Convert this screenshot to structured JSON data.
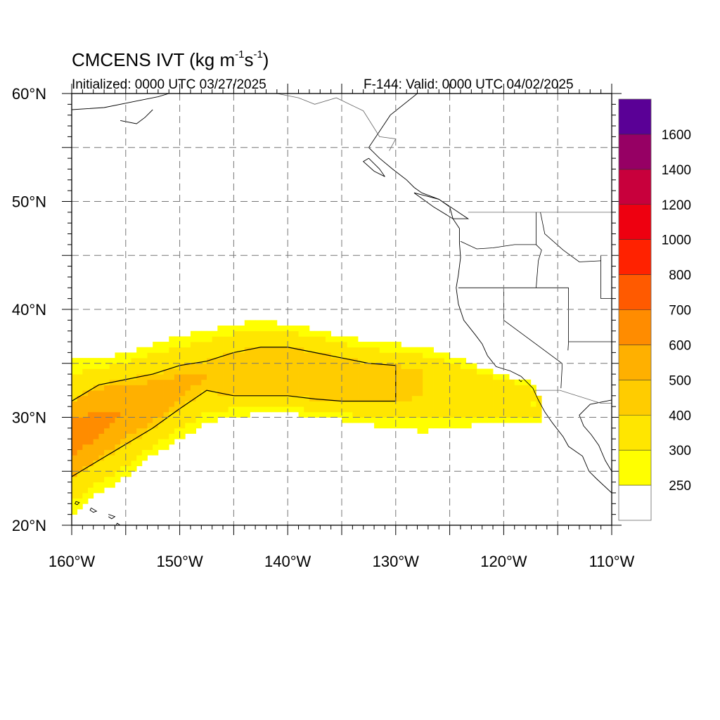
{
  "title": {
    "main": "CMCENS IVT (kg m",
    "exp1": "-1",
    "mid": "s",
    "exp2": "-1",
    "end": ")"
  },
  "init_label": "Initialized: 0000 UTC 03/27/2025",
  "valid_label": "F-144: Valid: 0000 UTC 04/02/2025",
  "map": {
    "lon_range": [
      -160,
      -110
    ],
    "lat_range": [
      20,
      60
    ],
    "grid": true,
    "grid_style": "dashed",
    "lon_ticks": [
      {
        "value": -160,
        "label": "160°W"
      },
      {
        "value": -150,
        "label": "150°W"
      },
      {
        "value": -140,
        "label": "140°W"
      },
      {
        "value": -130,
        "label": "130°W"
      },
      {
        "value": -120,
        "label": "120°W"
      },
      {
        "value": -110,
        "label": "110°W"
      }
    ],
    "lat_ticks": [
      {
        "value": 20,
        "label": "20°N"
      },
      {
        "value": 30,
        "label": "30°N"
      },
      {
        "value": 40,
        "label": "40°N"
      },
      {
        "value": 50,
        "label": "50°N"
      },
      {
        "value": 60,
        "label": "60°N"
      }
    ]
  },
  "colorbar": {
    "levels": [
      {
        "lo": 0,
        "color": "#ffffff"
      },
      {
        "lo": 250,
        "color": "#ffff00"
      },
      {
        "lo": 300,
        "color": "#ffe600"
      },
      {
        "lo": 400,
        "color": "#ffcc00"
      },
      {
        "lo": 500,
        "color": "#ffb000"
      },
      {
        "lo": 600,
        "color": "#ff8c00"
      },
      {
        "lo": 700,
        "color": "#ff5a00"
      },
      {
        "lo": 800,
        "color": "#ff2200"
      },
      {
        "lo": 1000,
        "color": "#ee0010"
      },
      {
        "lo": 1200,
        "color": "#c8003c"
      },
      {
        "lo": 1400,
        "color": "#960064"
      },
      {
        "lo": 1600,
        "color": "#5a0096"
      }
    ],
    "labels": [
      "250",
      "300",
      "400",
      "500",
      "600",
      "700",
      "800",
      "1000",
      "1200",
      "1400",
      "1600"
    ]
  },
  "chart_data": {
    "type": "heatmap",
    "variable": "IVT",
    "units": "kg m-1 s-1",
    "region": {
      "lon": [
        -160,
        -110
      ],
      "lat": [
        20,
        60
      ]
    },
    "ivt_plume": [
      {
        "lon": -160,
        "lat_south": 21,
        "lat_north": 35.3,
        "core_south": 24.5,
        "core_north": 31.5,
        "core_value": 700
      },
      {
        "lon": -157.5,
        "lat_south": 23,
        "lat_north": 35.3,
        "core_south": 26,
        "core_north": 33,
        "core_value": 650
      },
      {
        "lon": -155,
        "lat_south": 24.5,
        "lat_north": 36,
        "core_south": 27.5,
        "core_north": 33.5,
        "core_value": 600
      },
      {
        "lon": -152.5,
        "lat_south": 26.5,
        "lat_north": 36.8,
        "core_south": 29,
        "core_north": 34,
        "core_value": 600
      },
      {
        "lon": -150,
        "lat_south": 28,
        "lat_north": 37.5,
        "core_south": 30.8,
        "core_north": 34.8,
        "core_value": 550
      },
      {
        "lon": -147.5,
        "lat_south": 29.5,
        "lat_north": 38,
        "core_south": 32.5,
        "core_north": 35.2,
        "core_value": 500
      },
      {
        "lon": -145,
        "lat_south": 30.2,
        "lat_north": 38.6,
        "core_south": 32,
        "core_north": 36,
        "core_value": 450
      },
      {
        "lon": -142.5,
        "lat_south": 30.3,
        "lat_north": 39,
        "core_south": 32,
        "core_north": 36.5,
        "core_value": 450
      },
      {
        "lon": -140,
        "lat_south": 30.3,
        "lat_north": 38.6,
        "core_south": 32,
        "core_north": 36.5,
        "core_value": 450
      },
      {
        "lon": -137.5,
        "lat_south": 30.2,
        "lat_north": 38.2,
        "core_south": 31.7,
        "core_north": 36,
        "core_value": 450
      },
      {
        "lon": -135,
        "lat_south": 29.8,
        "lat_north": 37.5,
        "core_south": 31.5,
        "core_north": 35.5,
        "core_value": 450
      },
      {
        "lon": -132.5,
        "lat_south": 29.3,
        "lat_north": 37,
        "core_south": 31.5,
        "core_north": 35,
        "core_value": 450
      },
      {
        "lon": -130,
        "lat_south": 29,
        "lat_north": 36.8,
        "core_south": 31.5,
        "core_north": 34.8,
        "core_value": 450
      },
      {
        "lon": -127.5,
        "lat_south": 28.7,
        "lat_north": 36.5,
        "core_south": 32,
        "core_north": 34.3,
        "core_value": 400
      },
      {
        "lon": -125,
        "lat_south": 29,
        "lat_north": 35.8,
        "core_south": 32.5,
        "core_north": 33.5,
        "core_value": 350
      },
      {
        "lon": -122.5,
        "lat_south": 29.3,
        "lat_north": 34.8,
        "core_south": 31,
        "core_north": 33,
        "core_value": 320
      },
      {
        "lon": -120,
        "lat_south": 29.3,
        "lat_north": 33.8,
        "core_south": 31,
        "core_north": 32.5,
        "core_value": 300
      },
      {
        "lon": -117.5,
        "lat_south": 29.5,
        "lat_north": 33.5,
        "core_south": 31,
        "core_north": 32,
        "core_value": 280
      },
      {
        "lon": -116.5,
        "lat_south": 29.8,
        "lat_north": 31.5,
        "core_south": 30.5,
        "core_north": 31,
        "core_value": 260
      }
    ]
  }
}
